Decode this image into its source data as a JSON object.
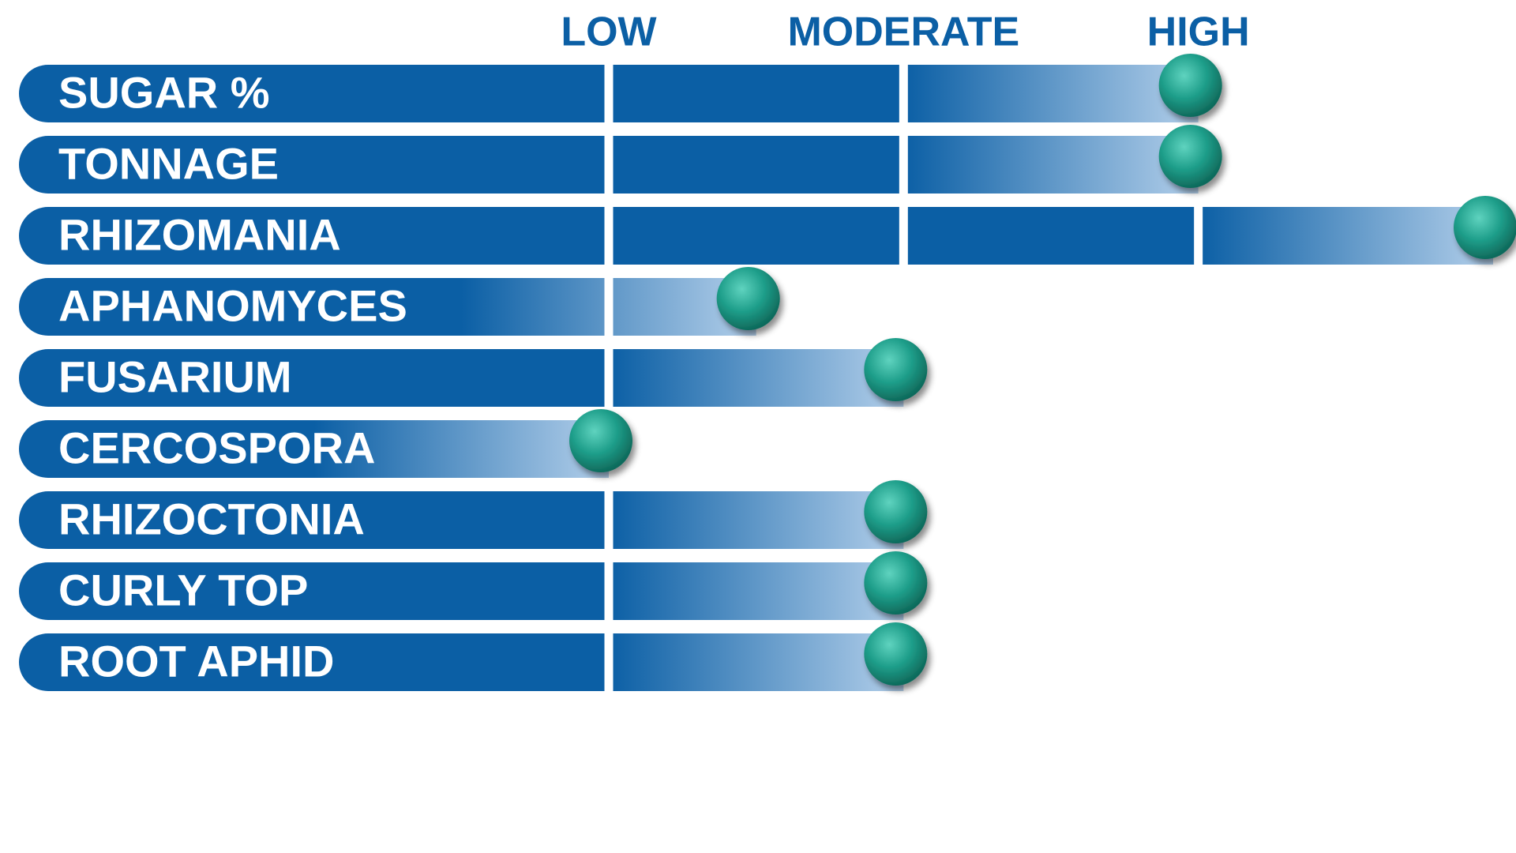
{
  "chart_data": {
    "type": "bar",
    "orientation": "horizontal",
    "categories": [
      "SUGAR %",
      "TONNAGE",
      "RHIZOMANIA",
      "APHANOMYCES",
      "FUSARIUM",
      "CERCOSPORA",
      "RHIZOCTONIA",
      "CURLY TOP",
      "ROOT APHID"
    ],
    "values": [
      2,
      2,
      3,
      0.5,
      1,
      0,
      1,
      1,
      1
    ],
    "xlim": [
      0,
      3
    ],
    "xticks": [
      {
        "value": 0,
        "label": "LOW"
      },
      {
        "value": 1,
        "label": "MODERATE"
      },
      {
        "value": 2,
        "label": "HIGH"
      }
    ],
    "color": "#0b5fa5",
    "fade_color": "#b3cfea",
    "marker_color": "#1e9e8a"
  }
}
